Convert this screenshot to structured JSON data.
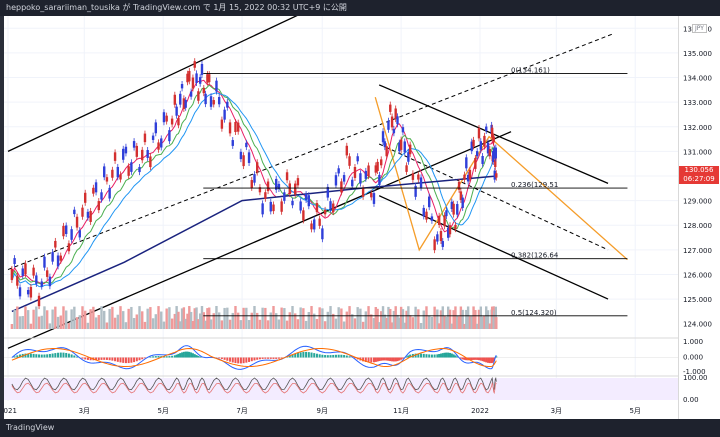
{
  "header": {
    "text": "heppoko_sarariiman_tousika が TradingView.com で 1月 15, 2022 00:32 UTC+9 に公開"
  },
  "footer": {
    "logo_text": "TradingView"
  },
  "price_scale": {
    "currency": "JPY",
    "current_price": "130.056",
    "countdown": "06:27:09",
    "upper_ticks": [
      "136.000",
      "135.000",
      "134.000",
      "133.000",
      "132.000",
      "131.000",
      "129.000",
      "128.000",
      "127.000",
      "126.000",
      "125.000",
      "124.000"
    ],
    "macd_ticks": [
      "1.000",
      "0.000",
      "-1.000"
    ],
    "rsi_ticks": [
      "100.00",
      "0.00"
    ]
  },
  "chart_data": [
    {
      "type": "line",
      "title": "",
      "symbol": "JPY",
      "xlabel": "",
      "ylabel": "",
      "x_ticks": [
        "2021",
        "3月",
        "5月",
        "7月",
        "9月",
        "11月",
        "2022",
        "3月",
        "5月"
      ],
      "ylim": [
        123.5,
        136.5
      ],
      "y_ticks": [
        125,
        126,
        127,
        128,
        129,
        130,
        131,
        132,
        133,
        134,
        135,
        136
      ],
      "grid": true,
      "series": [
        {
          "style": "candlestick",
          "x": [
            "2021-01-04",
            "2021-01-25",
            "2021-02-15",
            "2021-03-08",
            "2021-03-29",
            "2021-04-19",
            "2021-05-10",
            "2021-05-24",
            "2021-06-07",
            "2021-06-28",
            "2021-07-19",
            "2021-08-09",
            "2021-08-30",
            "2021-09-20",
            "2021-10-11",
            "2021-10-25",
            "2021-11-08",
            "2021-11-29",
            "2021-12-13",
            "2021-12-27",
            "2022-01-10",
            "2022-01-14"
          ],
          "values": [
            126.0,
            125.5,
            127.5,
            129.0,
            130.5,
            131.0,
            132.5,
            134.0,
            133.5,
            131.5,
            129.0,
            129.5,
            128.0,
            130.5,
            129.5,
            132.5,
            130.5,
            127.5,
            128.5,
            131.0,
            131.5,
            130.056
          ]
        },
        {
          "style": "moving-average",
          "x": [
            "2021-01-04",
            "2021-04-01",
            "2021-07-01",
            "2021-10-01",
            "2022-01-14"
          ],
          "values": [
            124.5,
            126.5,
            129.0,
            129.5,
            130.0
          ]
        }
      ],
      "fibonacci": [
        {
          "level": "0",
          "value": 134.161,
          "label": "0(134.161)"
        },
        {
          "level": "0.236",
          "value": 129.51,
          "label": "0.236(129.51"
        },
        {
          "level": "0.382",
          "value": 126.64,
          "label": "0.382(126.64"
        },
        {
          "level": "0.5",
          "value": 124.32,
          "label": "0.5(124.320)"
        }
      ]
    },
    {
      "type": "line",
      "title": "",
      "ylim": [
        -1.5,
        1.5
      ],
      "y_ticks": [
        -1.0,
        0.0,
        1.0
      ],
      "series": []
    },
    {
      "type": "line",
      "title": "",
      "ylim": [
        0,
        100
      ],
      "y_ticks": [
        0,
        100
      ],
      "series": []
    }
  ]
}
